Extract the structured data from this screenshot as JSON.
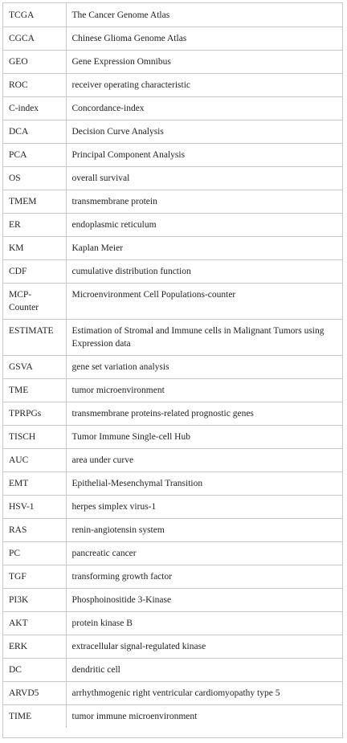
{
  "rows": [
    {
      "abbr": "TCGA",
      "definition": "The Cancer Genome Atlas"
    },
    {
      "abbr": "CGCA",
      "definition": "Chinese Glioma Genome Atlas"
    },
    {
      "abbr": "GEO",
      "definition": "Gene Expression Omnibus"
    },
    {
      "abbr": "ROC",
      "definition": "receiver operating characteristic"
    },
    {
      "abbr": "C-index",
      "definition": "Concordance-index"
    },
    {
      "abbr": "DCA",
      "definition": "Decision Curve Analysis"
    },
    {
      "abbr": "PCA",
      "definition": "Principal Component Analysis"
    },
    {
      "abbr": "OS",
      "definition": "overall survival"
    },
    {
      "abbr": "TMEM",
      "definition": "transmembrane protein"
    },
    {
      "abbr": "ER",
      "definition": "endoplasmic reticulum"
    },
    {
      "abbr": "KM",
      "definition": "Kaplan Meier"
    },
    {
      "abbr": "CDF",
      "definition": "cumulative distribution function"
    },
    {
      "abbr": "MCP-Counter",
      "definition": "Microenvironment Cell Populations-counter"
    },
    {
      "abbr": "ESTIMATE",
      "definition": "Estimation of Stromal and Immune cells in Malignant Tumors using Expression data"
    },
    {
      "abbr": "GSVA",
      "definition": "gene set variation analysis"
    },
    {
      "abbr": "TME",
      "definition": "tumor microenvironment"
    },
    {
      "abbr": "TPRPGs",
      "definition": "transmembrane proteins-related prognostic genes"
    },
    {
      "abbr": "TISCH",
      "definition": "Tumor Immune Single-cell Hub"
    },
    {
      "abbr": "AUC",
      "definition": "area under curve"
    },
    {
      "abbr": "EMT",
      "definition": "Epithelial-Mesenchymal Transition"
    },
    {
      "abbr": "HSV-1",
      "definition": "herpes simplex virus-1"
    },
    {
      "abbr": "RAS",
      "definition": "renin-angiotensin system"
    },
    {
      "abbr": "PC",
      "definition": "pancreatic cancer"
    },
    {
      "abbr": "TGF",
      "definition": "transforming growth factor"
    },
    {
      "abbr": "PI3K",
      "definition": "Phosphoinositide 3-Kinase"
    },
    {
      "abbr": "AKT",
      "definition": "protein kinase B"
    },
    {
      "abbr": "ERK",
      "definition": "extracellular signal-regulated kinase"
    },
    {
      "abbr": "DC",
      "definition": "dendritic cell"
    },
    {
      "abbr": "ARVD5",
      "definition": "arrhythmogenic right ventricular cardiomyopathy type 5"
    },
    {
      "abbr": "TIME",
      "definition": "tumor immune microenvironment"
    }
  ]
}
